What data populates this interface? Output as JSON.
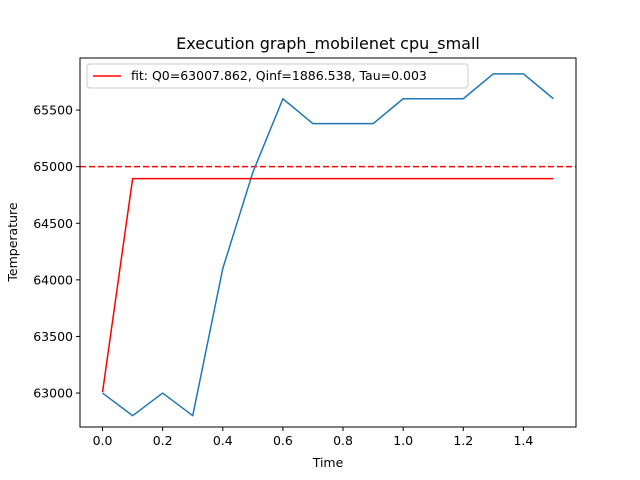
{
  "chart_data": {
    "type": "line",
    "title": "Execution graph_mobilenet cpu_small",
    "xlabel": "Time",
    "ylabel": "Temperature",
    "xlim": [
      -0.075,
      1.575
    ],
    "ylim": [
      62700,
      65960
    ],
    "x_ticks": [
      0.0,
      0.2,
      0.4,
      0.6,
      0.8,
      1.0,
      1.2,
      1.4
    ],
    "x_tick_labels": [
      "0.0",
      "0.2",
      "0.4",
      "0.6",
      "0.8",
      "1.0",
      "1.2",
      "1.4"
    ],
    "y_ticks": [
      63000,
      63500,
      64000,
      64500,
      65000,
      65500
    ],
    "y_tick_labels": [
      "63000",
      "63500",
      "64000",
      "64500",
      "65000",
      "65500"
    ],
    "grid": false,
    "legend_position": "upper-left",
    "series": [
      {
        "name": "",
        "color": "#1f77b4",
        "style": "solid",
        "x": [
          0.0,
          0.1,
          0.2,
          0.3,
          0.4,
          0.5,
          0.6,
          0.7,
          0.8,
          0.9,
          1.0,
          1.1,
          1.2,
          1.3,
          1.4,
          1.5
        ],
        "y": [
          63000,
          62800,
          63000,
          62800,
          64100,
          64950,
          65600,
          65380,
          65380,
          65380,
          65600,
          65600,
          65600,
          65820,
          65820,
          65600
        ]
      },
      {
        "name": "fit: Q0=63007.862, Qinf=1886.538, Tau=0.003",
        "color": "#ff0000",
        "style": "solid",
        "x": [
          0.0,
          0.1,
          0.2,
          0.3,
          0.4,
          0.5,
          0.6,
          0.7,
          0.8,
          0.9,
          1.0,
          1.1,
          1.2,
          1.3,
          1.4,
          1.5
        ],
        "y": [
          63008,
          64894,
          64894,
          64894,
          64894,
          64894,
          64894,
          64894,
          64894,
          64894,
          64894,
          64894,
          64894,
          64894,
          64894,
          64894
        ]
      }
    ],
    "hlines": [
      {
        "y": 65000,
        "color": "#ff0000",
        "style": "dashed"
      }
    ]
  }
}
